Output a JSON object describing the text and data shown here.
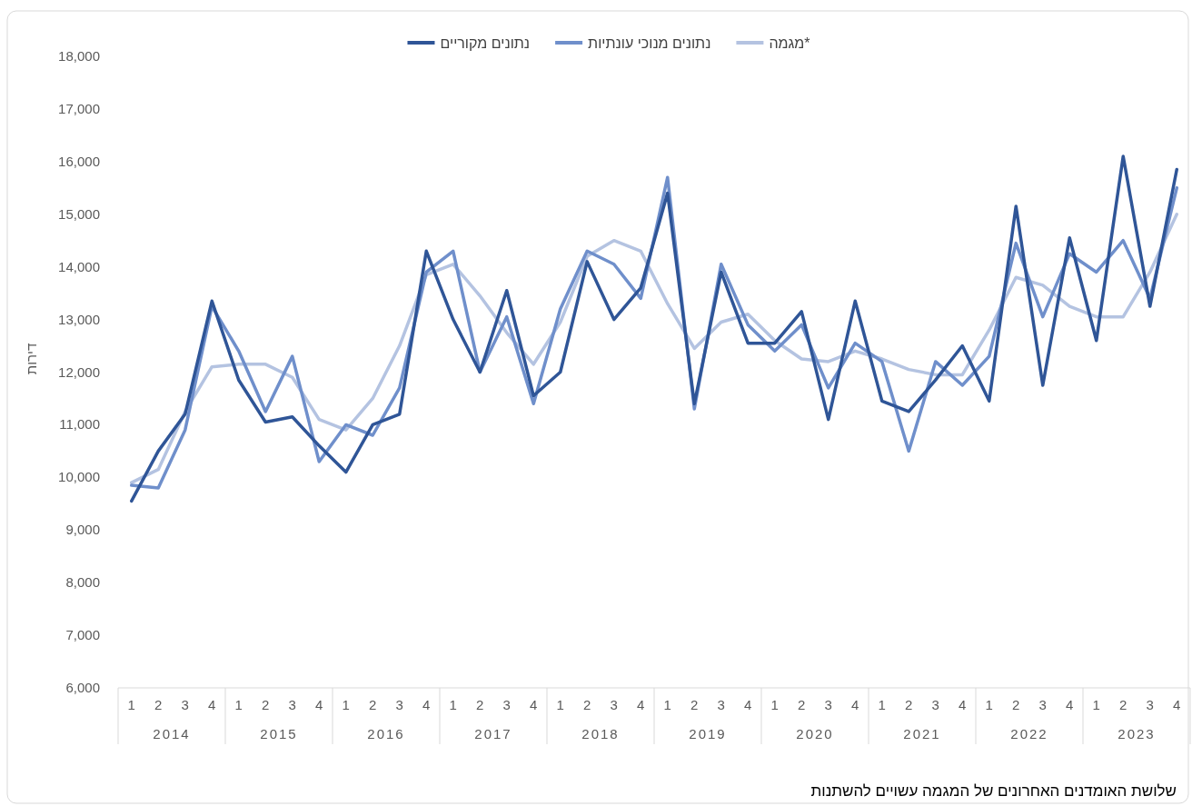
{
  "chart_data": {
    "type": "line",
    "ylabel": "דירות",
    "categories": [
      "1",
      "2",
      "3",
      "4",
      "1",
      "2",
      "3",
      "4",
      "1",
      "2",
      "3",
      "4",
      "1",
      "2",
      "3",
      "4",
      "1",
      "2",
      "3",
      "4",
      "1",
      "2",
      "3",
      "4",
      "1",
      "2",
      "3",
      "4",
      "1",
      "2",
      "3",
      "4",
      "1",
      "2",
      "3",
      "4",
      "1",
      "2",
      "3",
      "4"
    ],
    "series": [
      {
        "name": "נתונים מקוריים",
        "color": "#2f5597",
        "values": [
          9550,
          10500,
          11200,
          13350,
          11850,
          11050,
          11150,
          10600,
          10100,
          11000,
          11200,
          14300,
          13000,
          12000,
          13550,
          11550,
          12000,
          14100,
          13000,
          13600,
          15400,
          11400,
          13900,
          12550,
          12550,
          13150,
          11100,
          13350,
          11450,
          11250,
          11850,
          12500,
          11450,
          15150,
          11750,
          14550,
          12600,
          16100,
          13250,
          15850
        ]
      },
      {
        "name": "נתונים מנוכי עונתיות",
        "color": "#6f8fcb",
        "values": [
          9850,
          9800,
          10900,
          13250,
          12400,
          11250,
          12300,
          10300,
          11000,
          10800,
          11700,
          13900,
          14300,
          12000,
          13050,
          11400,
          13200,
          14300,
          14050,
          13400,
          15700,
          11300,
          14050,
          12900,
          12400,
          12900,
          11700,
          12550,
          12200,
          10500,
          12200,
          11750,
          12300,
          14450,
          13050,
          14250,
          13900,
          14500,
          13400,
          15500
        ]
      },
      {
        "name": "מגמה*",
        "color": "#b4c3e1",
        "values": [
          9900,
          10150,
          11250,
          12100,
          12150,
          12150,
          11900,
          11100,
          10900,
          11500,
          12500,
          13850,
          14050,
          13450,
          12750,
          12150,
          12950,
          14200,
          14500,
          14300,
          13300,
          12450,
          12950,
          13100,
          12600,
          12250,
          12200,
          12400,
          12250,
          12050,
          11950,
          11950,
          12800,
          13800,
          13650,
          13250,
          13050,
          13050,
          13900,
          15000
        ]
      }
    ],
    "ylim": [
      6000,
      18000
    ],
    "yticks": [
      {
        "value": 6000,
        "label": "6,000"
      },
      {
        "value": 7000,
        "label": "7,000"
      },
      {
        "value": 8000,
        "label": "8,000"
      },
      {
        "value": 9000,
        "label": "9,000"
      },
      {
        "value": 10000,
        "label": "10,000"
      },
      {
        "value": 11000,
        "label": "11,000"
      },
      {
        "value": 12000,
        "label": "12,000"
      },
      {
        "value": 13000,
        "label": "13,000"
      },
      {
        "value": 14000,
        "label": "14,000"
      },
      {
        "value": 15000,
        "label": "15,000"
      },
      {
        "value": 16000,
        "label": "16,000"
      },
      {
        "value": 17000,
        "label": "17,000"
      },
      {
        "value": 18000,
        "label": "18,000"
      }
    ],
    "annotations": [
      "2014",
      "2015",
      "2016",
      "2017",
      "2018",
      "2019",
      "2020",
      "2021",
      "2022",
      "2023",
      "שלושת האומדנים האחרונים של המגמה עשויים להשתנות"
    ],
    "grid": false,
    "legend": "top",
    "marker": "none",
    "line_style": "solid"
  }
}
